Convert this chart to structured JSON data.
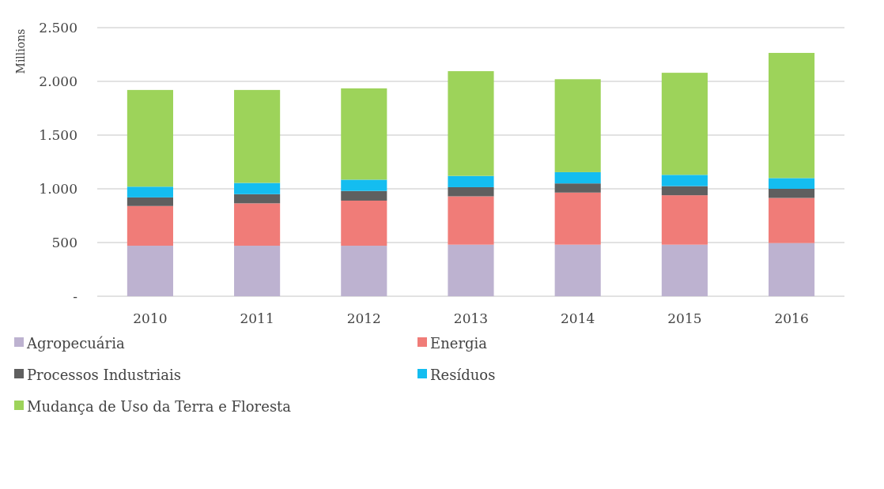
{
  "chart_data": {
    "type": "bar",
    "stacked": true,
    "ylabel": "Millions",
    "categories": [
      "2010",
      "2011",
      "2012",
      "2013",
      "2014",
      "2015",
      "2016"
    ],
    "series": [
      {
        "name": "Agropecuária",
        "color": "#bdb2d0",
        "values": [
          470,
          470,
          470,
          480,
          480,
          480,
          495
        ]
      },
      {
        "name": "Energia",
        "color": "#f07c78",
        "values": [
          370,
          395,
          420,
          450,
          485,
          460,
          420
        ]
      },
      {
        "name": "Processos Industriais",
        "color": "#5f5f5f",
        "values": [
          80,
          85,
          90,
          85,
          85,
          85,
          85
        ]
      },
      {
        "name": "Resíduos",
        "color": "#14bdf0",
        "values": [
          100,
          105,
          105,
          105,
          105,
          105,
          100
        ]
      },
      {
        "name": "Mudança de Uso da Terra e Floresta",
        "color": "#9dd35a",
        "values": [
          900,
          865,
          850,
          975,
          865,
          950,
          1165
        ]
      }
    ],
    "ylim": [
      0,
      2500
    ],
    "yticks": [
      {
        "value": 0,
        "label": "-"
      },
      {
        "value": 500,
        "label": "500"
      },
      {
        "value": 1000,
        "label": "1.000"
      },
      {
        "value": 1500,
        "label": "1.500"
      },
      {
        "value": 2000,
        "label": "2.000"
      },
      {
        "value": 2500,
        "label": "2.500"
      }
    ],
    "grid": "y",
    "legend": "bottom"
  }
}
